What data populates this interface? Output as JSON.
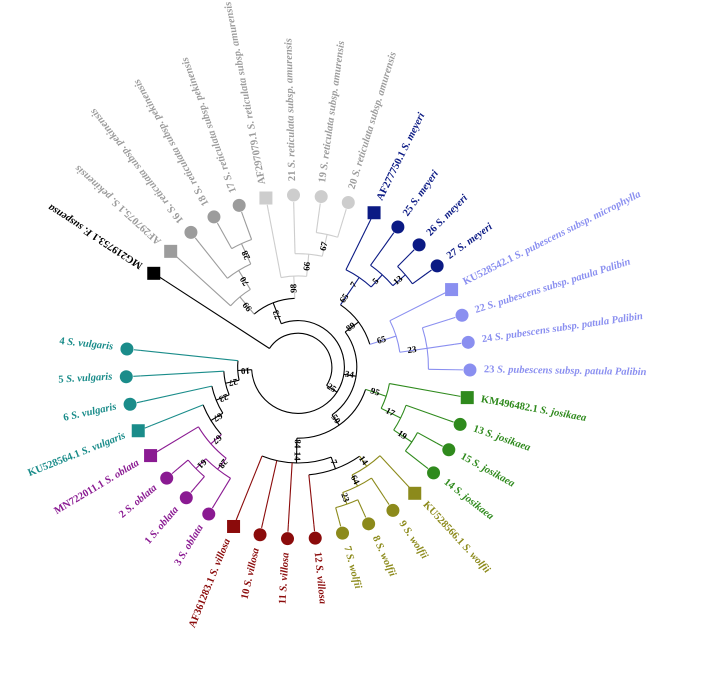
{
  "colors": {
    "outgroup": "#000000",
    "pekinensis": "#9c9c9c",
    "amurensis": "#cdcdcd",
    "amurensis_text": "#9c9c9c",
    "meyeri": "#0b1a84",
    "pubescens": "#8a8ff0",
    "josikaea": "#2f8a1d",
    "wolfii": "#8c8a1b",
    "villosa": "#8b0b0b",
    "oblata": "#8a1a92",
    "vulgaris": "#1a8c8a"
  },
  "tips": [
    {
      "id": "t1",
      "group": "outgroup",
      "shape": "square",
      "prefix": "MG219753.1",
      "species": "F. suspensa"
    },
    {
      "id": "t2",
      "group": "pekinensis",
      "shape": "square",
      "prefix": "AF297075.1",
      "species": "S. pekinensis"
    },
    {
      "id": "t3",
      "group": "pekinensis",
      "shape": "circle",
      "prefix": "16",
      "species": "S. reticulata subsp. pekinensis"
    },
    {
      "id": "t4",
      "group": "pekinensis",
      "shape": "circle",
      "prefix": "18",
      "species": "S. reticulata subsp. pekinensis"
    },
    {
      "id": "t5",
      "group": "pekinensis",
      "shape": "circle",
      "prefix": "17",
      "species": "S. reticulata subsp. pekinensis"
    },
    {
      "id": "t6",
      "group": "amurensis",
      "shape": "square",
      "prefix": "AF297079.1",
      "species": "S. reticulata subsp. amurensis"
    },
    {
      "id": "t7",
      "group": "amurensis",
      "shape": "circle",
      "prefix": "21",
      "species": "S. reticulata subsp. amurensis"
    },
    {
      "id": "t8",
      "group": "amurensis",
      "shape": "circle",
      "prefix": "19",
      "species": "S. reticulata subsp. amurensis"
    },
    {
      "id": "t9",
      "group": "amurensis",
      "shape": "circle",
      "prefix": "20",
      "species": "S. reticulata subsp. amurensis"
    },
    {
      "id": "t10",
      "group": "meyeri",
      "shape": "square",
      "prefix": "AF277750.1",
      "species": "S. meyeri"
    },
    {
      "id": "t11",
      "group": "meyeri",
      "shape": "circle",
      "prefix": "25",
      "species": "S. meyeri"
    },
    {
      "id": "t12",
      "group": "meyeri",
      "shape": "circle",
      "prefix": "26",
      "species": "S. meyeri"
    },
    {
      "id": "t13",
      "group": "meyeri",
      "shape": "circle",
      "prefix": "27",
      "species": "S. meyeri"
    },
    {
      "id": "t14",
      "group": "pubescens",
      "shape": "square",
      "prefix": "KU528542.1",
      "species": "S. pubescens subsp. microphylla"
    },
    {
      "id": "t15",
      "group": "pubescens",
      "shape": "circle",
      "prefix": "22",
      "species": "S. pubescens subsp. patula Palibin"
    },
    {
      "id": "t16",
      "group": "pubescens",
      "shape": "circle",
      "prefix": "24",
      "species": "S. pubescens subsp. patula Palibin"
    },
    {
      "id": "t17",
      "group": "pubescens",
      "shape": "circle",
      "prefix": "23",
      "species": "S. pubescens subsp. patula Palibin"
    },
    {
      "id": "t18",
      "group": "josikaea",
      "shape": "square",
      "prefix": "KM496482.1",
      "species": "S. josikaea"
    },
    {
      "id": "t19",
      "group": "josikaea",
      "shape": "circle",
      "prefix": "13",
      "species": "S. josikaea"
    },
    {
      "id": "t20",
      "group": "josikaea",
      "shape": "circle",
      "prefix": "15",
      "species": "S. josikaea"
    },
    {
      "id": "t21",
      "group": "josikaea",
      "shape": "circle",
      "prefix": "14",
      "species": "S. josikaea"
    },
    {
      "id": "t22",
      "group": "wolfii",
      "shape": "square",
      "prefix": "KU528566.1",
      "species": "S. wolfii"
    },
    {
      "id": "t23",
      "group": "wolfii",
      "shape": "circle",
      "prefix": "9",
      "species": "S. wolfii"
    },
    {
      "id": "t24",
      "group": "wolfii",
      "shape": "circle",
      "prefix": "8",
      "species": "S. wolfii"
    },
    {
      "id": "t25",
      "group": "wolfii",
      "shape": "circle",
      "prefix": "7",
      "species": "S. wolfii"
    },
    {
      "id": "t26",
      "group": "villosa",
      "shape": "circle",
      "prefix": "12",
      "species": "S. villosa"
    },
    {
      "id": "t27",
      "group": "villosa",
      "shape": "circle",
      "prefix": "11",
      "species": "S. villosa"
    },
    {
      "id": "t28",
      "group": "villosa",
      "shape": "circle",
      "prefix": "10",
      "species": "S. villosa"
    },
    {
      "id": "t29",
      "group": "villosa",
      "shape": "square",
      "prefix": "AF361283.1",
      "species": "S. villosa"
    },
    {
      "id": "t30",
      "group": "oblata",
      "shape": "circle",
      "prefix": "3",
      "species": "S. oblata"
    },
    {
      "id": "t31",
      "group": "oblata",
      "shape": "circle",
      "prefix": "1",
      "species": "S. oblata"
    },
    {
      "id": "t32",
      "group": "oblata",
      "shape": "circle",
      "prefix": "2",
      "species": "S. oblata"
    },
    {
      "id": "t33",
      "group": "oblata",
      "shape": "square",
      "prefix": "MN722011.1",
      "species": "S. oblata"
    },
    {
      "id": "t34",
      "group": "vulgaris",
      "shape": "square",
      "prefix": "KU528564.1",
      "species": "S. vulgaris"
    },
    {
      "id": "t35",
      "group": "vulgaris",
      "shape": "circle",
      "prefix": "6",
      "species": "S. vulgaris"
    },
    {
      "id": "t36",
      "group": "vulgaris",
      "shape": "circle",
      "prefix": "5",
      "species": "S. vulgaris"
    },
    {
      "id": "t37",
      "group": "vulgaris",
      "shape": "circle",
      "prefix": "4",
      "species": "S. vulgaris"
    }
  ],
  "tree": {
    "children": [
      {
        "tip": "t1"
      },
      {
        "support": "25",
        "children": [
          {
            "support": "73",
            "children": [
              {
                "support": "99",
                "children": [
                  {
                    "tip": "t2"
                  },
                  {
                    "support": "70",
                    "children": [
                      {
                        "tip": "t3"
                      },
                      {
                        "support": "28",
                        "children": [
                          {
                            "tip": "t4"
                          },
                          {
                            "tip": "t5"
                          }
                        ]
                      }
                    ]
                  }
                ]
              },
              {
                "support": "98",
                "children": [
                  {
                    "tip": "t6"
                  },
                  {
                    "support": "66",
                    "children": [
                      {
                        "tip": "t7"
                      },
                      {
                        "support": "67",
                        "children": [
                          {
                            "tip": "t8"
                          },
                          {
                            "tip": "t9"
                          }
                        ]
                      }
                    ]
                  }
                ]
              }
            ]
          },
          {
            "support": "34",
            "children": [
              {
                "support": "89",
                "children": [
                  {
                    "support": "65",
                    "children": [
                      {
                        "support": "7",
                        "children": [
                          {
                            "tip": "t10"
                          },
                          {
                            "support": "5",
                            "children": [
                              {
                                "tip": "t11"
                              },
                              {
                                "support": "13",
                                "children": [
                                  {
                                    "tip": "t12"
                                  },
                                  {
                                    "tip": "t13"
                                  }
                                ]
                              }
                            ]
                          }
                        ]
                      }
                    ]
                  },
                  {
                    "support": "65",
                    "children": [
                      {
                        "tip": "t14"
                      },
                      {
                        "support": "23",
                        "children": [
                          {
                            "tip": "t15"
                          },
                          {
                            "tip": "t16"
                          },
                          {
                            "tip": "t17"
                          }
                        ]
                      }
                    ]
                  }
                ]
              },
              {
                "support": "50",
                "children": [
                  {
                    "support": "95",
                    "children": [
                      {
                        "tip": "t18"
                      },
                      {
                        "support": "17",
                        "children": [
                          {
                            "tip": "t19"
                          },
                          {
                            "support": "19",
                            "children": [
                              {
                                "tip": "t20"
                              },
                              {
                                "tip": "t21"
                              }
                            ]
                          }
                        ]
                      }
                    ]
                  },
                  {
                    "support": "84",
                    "children": [
                      {
                        "support": "14",
                        "children": [
                          {
                            "support": "7",
                            "children": [
                              {
                                "support": "14",
                                "children": [
                                  {
                                    "tip": "t22"
                                  },
                                  {
                                    "support": "64",
                                    "children": [
                                      {
                                        "tip": "t23"
                                      },
                                      {
                                        "support": "23",
                                        "children": [
                                          {
                                            "tip": "t24"
                                          },
                                          {
                                            "tip": "t25"
                                          }
                                        ]
                                      }
                                    ]
                                  }
                                ]
                              },
                              {
                                "tip": "t26"
                              }
                            ]
                          },
                          {
                            "tip": "t27"
                          },
                          {
                            "tip": "t28"
                          },
                          {
                            "tip": "t29"
                          }
                        ]
                      }
                    ]
                  }
                ]
              }
            ]
          },
          {
            "support": "10",
            "children": [
              {
                "support": "27",
                "children": [
                  {
                    "support": "23",
                    "children": [
                      {
                        "support": "67",
                        "children": [
                          {
                            "support": "67",
                            "children": [
                              {
                                "support": "28",
                                "children": [
                                  {
                                    "tip": "t30"
                                  },
                                  {
                                    "support": "61",
                                    "children": [
                                      {
                                        "tip": "t31"
                                      },
                                      {
                                        "tip": "t32"
                                      }
                                    ]
                                  }
                                ]
                              },
                              {
                                "tip": "t33"
                              }
                            ]
                          },
                          {
                            "tip": "t34"
                          }
                        ]
                      },
                      {
                        "tip": "t35"
                      }
                    ]
                  },
                  {
                    "tip": "t36"
                  }
                ]
              },
              {
                "tip": "t37"
              }
            ]
          }
        ]
      }
    ]
  }
}
